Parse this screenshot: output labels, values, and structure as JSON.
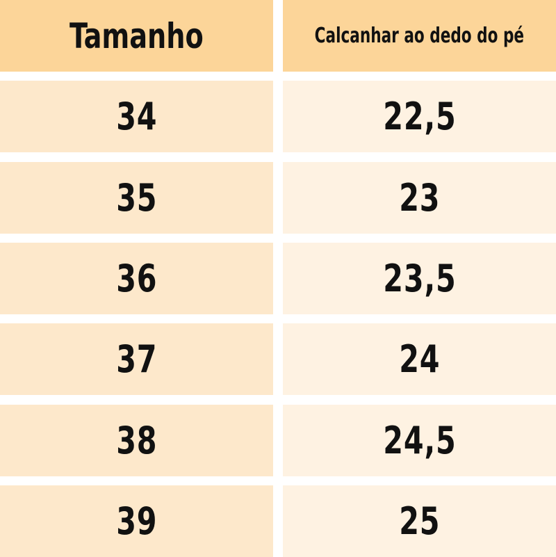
{
  "headers": [
    "Tamanho",
    "Calcanhar ao dedo do pé"
  ],
  "rows": [
    {
      "size": "34",
      "length": "22,5"
    },
    {
      "size": "35",
      "length": "23"
    },
    {
      "size": "36",
      "length": "23,5"
    },
    {
      "size": "37",
      "length": "24"
    },
    {
      "size": "38",
      "length": "24,5"
    },
    {
      "size": "39",
      "length": "25"
    }
  ],
  "colors": {
    "header": "#fcd599",
    "left_cell": "#fde8cb",
    "right_cell": "#fef2e2"
  }
}
